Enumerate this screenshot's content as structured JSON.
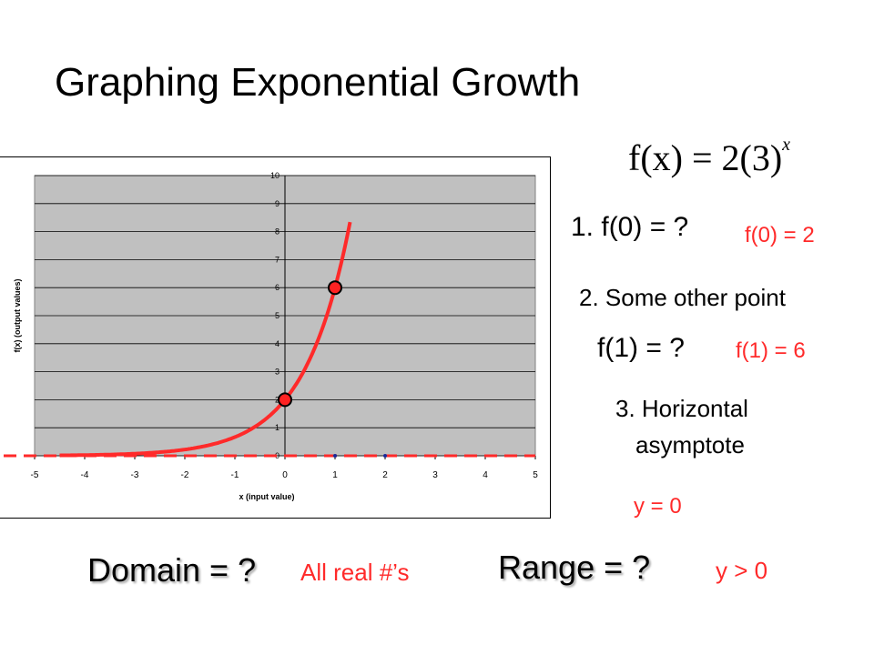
{
  "title": "Graphing Exponential Growth",
  "formula": {
    "lhs": "f(x) = 2(3)",
    "exp": "x"
  },
  "steps": [
    {
      "question": "1. f(0) = ?",
      "answer": "f(0) = 2"
    },
    {
      "question": "2.  Some other point",
      "answer": ""
    },
    {
      "question": "f(1) = ?",
      "answer": "f(1) = 6"
    },
    {
      "question": "3. Horizontal",
      "question2": "asymptote",
      "answer": "y = 0"
    }
  ],
  "domain": {
    "question": "Domain = ?",
    "answer": "All real #’s"
  },
  "range": {
    "question": "Range = ?",
    "answer": "y > 0"
  },
  "colors": {
    "curve": "#ff2a2a",
    "plot_bg": "#c0c0c0",
    "point_fill": "#ff2222",
    "asymptote": "#ff2a2a"
  },
  "chart_data": {
    "type": "line",
    "xlabel": "x (input value)",
    "ylabel": "f(x) (output values)",
    "xlim": [
      -5,
      5
    ],
    "ylim": [
      0,
      10
    ],
    "x_ticks": [
      "-5",
      "-4",
      "-3",
      "-2",
      "-1",
      "0",
      "1",
      "2",
      "3",
      "4",
      "5"
    ],
    "y_ticks": [
      "0",
      "1",
      "2",
      "3",
      "4",
      "5",
      "6",
      "7",
      "8",
      "9",
      "10"
    ],
    "grid": true,
    "series": [
      {
        "function": "2*3^x",
        "x": [
          -4.5,
          1.3
        ],
        "style": "solid"
      }
    ],
    "highlighted_points": [
      {
        "x": 0,
        "y": 2
      },
      {
        "x": 1,
        "y": 6
      }
    ],
    "small_points": [
      {
        "x": 1,
        "y": 0
      },
      {
        "x": 2,
        "y": 0
      }
    ],
    "asymptote": {
      "y": 0,
      "style": "dashed"
    }
  }
}
